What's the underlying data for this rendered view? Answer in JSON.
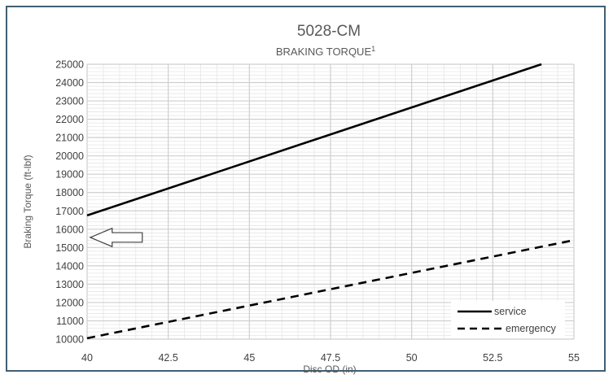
{
  "chart_data": {
    "type": "line",
    "title": "5028-CM",
    "subtitle": "BRAKING TORQUE",
    "subtitle_superscript": "1",
    "xlabel": "Disc OD (in)",
    "ylabel": "Braking Torque (ft-lbf)",
    "xlim": [
      40,
      55
    ],
    "ylim": [
      10000,
      25000
    ],
    "x_ticks": [
      "40",
      "42.5",
      "45",
      "47.5",
      "50",
      "52.5",
      "55"
    ],
    "y_ticks": [
      "10000",
      "11000",
      "12000",
      "13000",
      "14000",
      "15000",
      "16000",
      "17000",
      "18000",
      "19000",
      "20000",
      "21000",
      "22000",
      "23000",
      "24000",
      "25000"
    ],
    "grid": true,
    "legend_position": "bottom-right",
    "series": [
      {
        "name": "service",
        "style": "solid",
        "color": "#000000",
        "x": [
          40,
          54
        ],
        "y": [
          16750,
          25000
        ]
      },
      {
        "name": "emergency",
        "style": "dashed",
        "color": "#000000",
        "x": [
          40,
          55
        ],
        "y": [
          10050,
          15400
        ]
      }
    ],
    "annotation": {
      "shape": "left-arrow",
      "x": [
        40.1,
        41.7
      ],
      "y": [
        15050,
        16050
      ]
    }
  }
}
